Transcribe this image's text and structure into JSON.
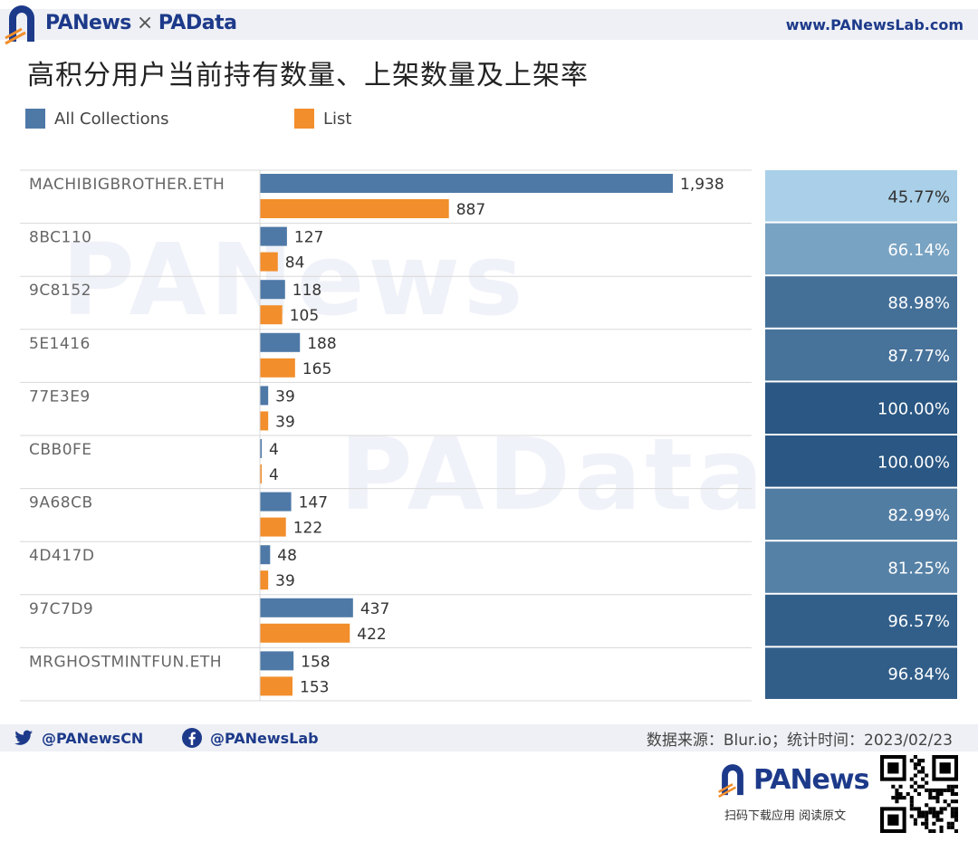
{
  "header": {
    "brand_left": "PANews",
    "brand_sep": "×",
    "brand_right": "PAData",
    "url": "www.PANewsLab.com"
  },
  "title": "高积分用户当前持有数量、上架数量及上架率",
  "legend": {
    "series1": "All Collections",
    "series2": "List"
  },
  "watermarks": [
    "PANews",
    "PAData"
  ],
  "chart_data": {
    "type": "bar",
    "orientation": "horizontal",
    "categories": [
      "MACHIBIGBROTHER.ETH",
      "8BC110",
      "9C8152",
      "5E1416",
      "77E3E9",
      "CBB0FE",
      "9A68CB",
      "4D417D",
      "97C7D9",
      "MRGHOSTMINTFUN.ETH"
    ],
    "series": [
      {
        "name": "All Collections",
        "color": "#4e79a7",
        "values": [
          1938,
          127,
          118,
          188,
          39,
          4,
          147,
          48,
          437,
          158
        ],
        "labels": [
          "1,938",
          "127",
          "118",
          "188",
          "39",
          "4",
          "147",
          "48",
          "437",
          "158"
        ]
      },
      {
        "name": "List",
        "color": "#f28e2b",
        "values": [
          887,
          84,
          105,
          165,
          39,
          4,
          122,
          39,
          422,
          153
        ],
        "labels": [
          "887",
          "84",
          "105",
          "165",
          "39",
          "4",
          "122",
          "39",
          "422",
          "153"
        ]
      }
    ],
    "rate": {
      "values": [
        45.77,
        66.14,
        88.98,
        87.77,
        100.0,
        100.0,
        82.99,
        81.25,
        96.57,
        96.84
      ],
      "labels": [
        "45.77%",
        "66.14%",
        "88.98%",
        "87.77%",
        "100.00%",
        "100.00%",
        "82.99%",
        "81.25%",
        "96.57%",
        "96.84%"
      ],
      "color_low": "#a9d0e8",
      "color_high": "#2a5783"
    },
    "xlim": [
      0,
      1938
    ]
  },
  "footer": {
    "twitter": "@PANewsCN",
    "facebook": "@PANewsLab",
    "source": "数据来源：Blur.io；统计时间：2023/02/23",
    "brand": "PANews",
    "tagline": "扫码下载应用  阅读原文"
  },
  "colors": {
    "brand_blue": "#1d3a8a",
    "bar_blue": "#4e79a7",
    "bar_orange": "#f28e2b"
  }
}
